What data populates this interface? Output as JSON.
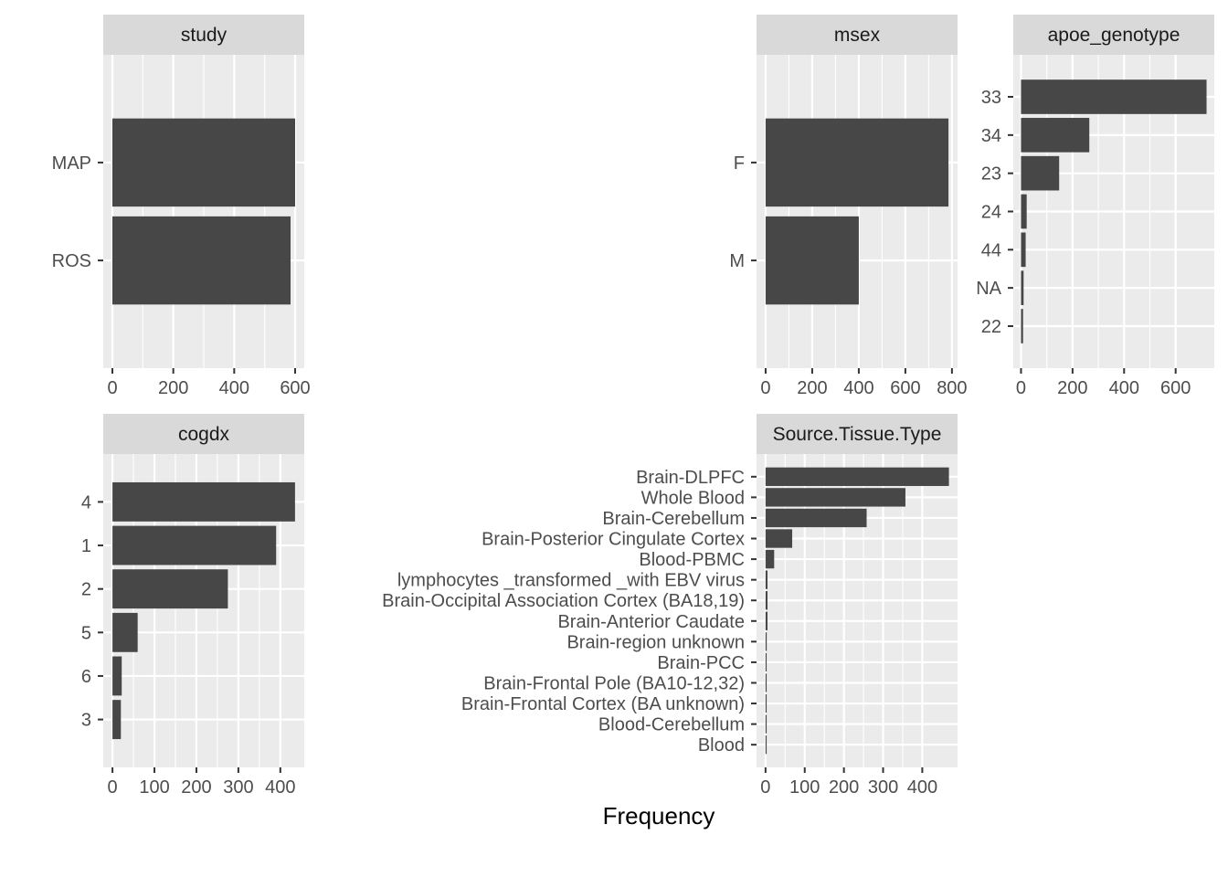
{
  "chart_data": {
    "type": "bar",
    "orientation": "horizontal",
    "layout": "faceted",
    "xlabel": "Frequency",
    "colors": {
      "bar": "#474747",
      "panel_bg": "#ebebeb",
      "strip_bg": "#d9d9d9",
      "grid": "#ffffff"
    },
    "grid": true,
    "facets": [
      {
        "id": "study",
        "title": "study",
        "categories": [
          "MAP",
          "ROS"
        ],
        "values": [
          600,
          585
        ],
        "xlim": [
          -30,
          630
        ],
        "xticks": [
          0,
          200,
          400,
          600
        ]
      },
      {
        "id": "msex",
        "title": "msex",
        "categories": [
          "F",
          "M"
        ],
        "values": [
          785,
          400
        ],
        "xlim": [
          -39,
          824
        ],
        "xticks": [
          0,
          200,
          400,
          600,
          800
        ]
      },
      {
        "id": "apoe_genotype",
        "title": "apoe_genotype",
        "categories": [
          "33",
          "34",
          "23",
          "24",
          "44",
          "NA",
          "22"
        ],
        "values": [
          720,
          265,
          148,
          22,
          18,
          10,
          8
        ],
        "xlim": [
          -30,
          750
        ],
        "xticks": [
          0,
          200,
          400,
          600
        ]
      },
      {
        "id": "cogdx",
        "title": "cogdx",
        "categories": [
          "4",
          "1",
          "2",
          "5",
          "6",
          "3"
        ],
        "values": [
          435,
          390,
          275,
          60,
          22,
          20
        ],
        "xlim": [
          -22,
          457
        ],
        "xticks": [
          0,
          100,
          200,
          300,
          400
        ]
      },
      {
        "id": "source_tissue_type",
        "title": "Source.Tissue.Type",
        "categories": [
          "Brain-DLPFC",
          "Whole Blood",
          "Brain-Cerebellum",
          "Brain-Posterior Cingulate Cortex",
          "Blood-PBMC",
          "lymphocytes _transformed _with EBV virus",
          "Brain-Occipital Association Cortex (BA18,19)",
          "Brain-Anterior Caudate",
          "Brain-region unknown",
          "Brain-PCC",
          "Brain-Frontal Pole (BA10-12,32)",
          "Brain-Frontal Cortex (BA unknown)",
          "Blood-Cerebellum",
          "Blood"
        ],
        "values": [
          468,
          357,
          258,
          68,
          22,
          5,
          5,
          5,
          3,
          2,
          2,
          2,
          2,
          2
        ],
        "xlim": [
          -23,
          490
        ],
        "xticks": [
          0,
          100,
          200,
          300,
          400
        ]
      }
    ]
  }
}
